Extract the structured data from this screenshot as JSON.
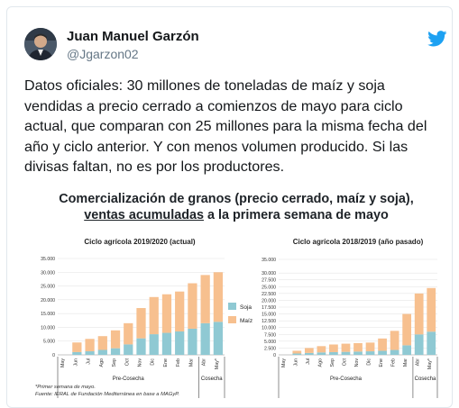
{
  "user": {
    "name": "Juan Manuel Garzón",
    "handle": "@Jgarzon02"
  },
  "tweet": {
    "text_lines": [
      "Datos oficiales: 30 millones de toneladas de maíz y soja",
      "vendidas a precio cerrado a comienzos de mayo para ciclo",
      "actual, que comparan con 25 millones para la misma fecha del",
      "año y ciclo anterior. Y con menos volumen producido. Si las",
      "divisas faltan, no es por los productores."
    ]
  },
  "media": {
    "title_line1": "Comercialización de granos (precio cerrado, maíz y soja),",
    "title_line2_underlined": "ventas acumuladas",
    "title_line2_rest": " a la primera semana de mayo",
    "footnote1": "*Primer semana de mayo.",
    "footnote2": "Fuente: IERAL de Fundación Mediterránea en base a MAGyP."
  },
  "colors": {
    "soja": "#8fc9d3",
    "maiz": "#f7c08f",
    "brand_blue": "#1da1f2"
  },
  "icons": {
    "twitter": "twitter-bird-icon",
    "avatar": "avatar"
  },
  "chart_data": [
    {
      "type": "bar",
      "stacked": true,
      "title": "Ciclo agrícola 2019/2020 (actual)",
      "categories": [
        "May",
        "Jun",
        "Jul",
        "Ago",
        "Sep",
        "Oct",
        "Nov",
        "Dic",
        "Ene",
        "Feb",
        "Mar",
        "Abr",
        "May*"
      ],
      "groups": [
        {
          "label": "Pre-Cosecha",
          "from": 0,
          "to": 10
        },
        {
          "label": "Cosecha",
          "from": 11,
          "to": 12
        }
      ],
      "series": [
        {
          "name": "Soja",
          "values": [
            0,
            1000,
            1300,
            1800,
            2400,
            3800,
            6000,
            7500,
            8000,
            8500,
            9500,
            11500,
            12000
          ]
        },
        {
          "name": "Maíz",
          "values": [
            0,
            3500,
            4500,
            5000,
            6500,
            7700,
            11000,
            13500,
            14000,
            14500,
            16500,
            17500,
            18000
          ]
        }
      ],
      "ylim": [
        0,
        35000
      ],
      "yticks": [
        "0",
        "5.000",
        "10.000",
        "15.000",
        "20.000",
        "25.000",
        "30.000",
        "35.000"
      ],
      "legend": "right"
    },
    {
      "type": "bar",
      "stacked": true,
      "title": "Ciclo agrícola 2018/2019 (año pasado)",
      "categories": [
        "May",
        "Jun",
        "Jul",
        "Ago",
        "Sep",
        "Oct",
        "Nov",
        "Dic",
        "Ene",
        "Feb",
        "Mar",
        "Abr",
        "May*"
      ],
      "groups": [
        {
          "label": "Pre-Cosecha",
          "from": 0,
          "to": 10
        },
        {
          "label": "Cosecha",
          "from": 11,
          "to": 12
        }
      ],
      "series": [
        {
          "name": "Soja",
          "values": [
            0,
            500,
            700,
            900,
            1000,
            1100,
            1200,
            1300,
            1500,
            1800,
            3500,
            7500,
            8500
          ]
        },
        {
          "name": "Maíz",
          "values": [
            0,
            1000,
            1800,
            2300,
            2800,
            3000,
            3100,
            3200,
            4500,
            7000,
            11500,
            15000,
            16000
          ]
        }
      ],
      "ylim": [
        0,
        35000
      ],
      "yticks": [
        "0",
        "2.500",
        "5.000",
        "7.500",
        "10.000",
        "12.500",
        "15.000",
        "17.500",
        "20.000",
        "22.500",
        "25.000",
        "27.500",
        "30.000",
        "35.000"
      ],
      "legend": "none"
    }
  ]
}
